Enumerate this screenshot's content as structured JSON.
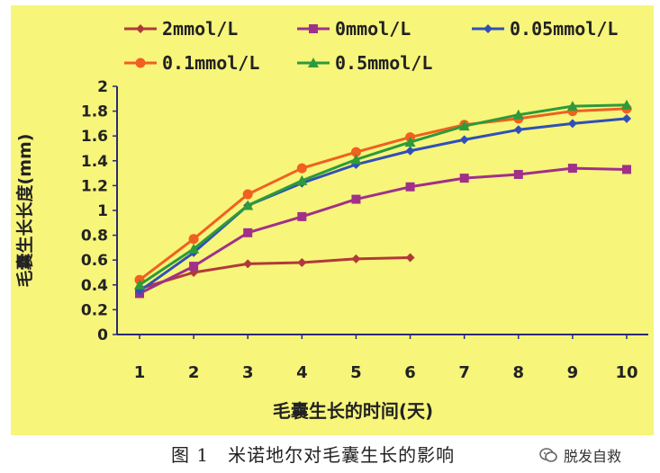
{
  "chart_data": {
    "type": "line",
    "title": "",
    "xlabel": "毛囊生长的时间(天)",
    "ylabel": "毛囊生长长度(mm)",
    "xlim": [
      1,
      10
    ],
    "ylim": [
      0,
      2
    ],
    "x_ticks": [
      "1",
      "2",
      "3",
      "4",
      "5",
      "6",
      "7",
      "8",
      "9",
      "10"
    ],
    "y_ticks": [
      "0",
      "0.2",
      "0.4",
      "0.6",
      "0.8",
      "1",
      "1.2",
      "1.4",
      "1.6",
      "1.8",
      "2"
    ],
    "grid": false,
    "legend_position": "top",
    "series": [
      {
        "name": "2mmol/L",
        "color": "#b03a3a",
        "marker": "diamond",
        "x": [
          1,
          2,
          3,
          4,
          5,
          6
        ],
        "values": [
          0.37,
          0.5,
          0.57,
          0.58,
          0.61,
          0.62
        ]
      },
      {
        "name": "0mmol/L",
        "color": "#a0308a",
        "marker": "square",
        "x": [
          1,
          2,
          3,
          4,
          5,
          6,
          7,
          8,
          9,
          10
        ],
        "values": [
          0.33,
          0.55,
          0.82,
          0.95,
          1.09,
          1.19,
          1.26,
          1.29,
          1.34,
          1.33
        ]
      },
      {
        "name": "0.05mmol/L",
        "color": "#3050b8",
        "marker": "diamond",
        "x": [
          1,
          2,
          3,
          4,
          5,
          6,
          7,
          8,
          9,
          10
        ],
        "values": [
          0.35,
          0.66,
          1.04,
          1.22,
          1.37,
          1.48,
          1.57,
          1.65,
          1.7,
          1.74
        ]
      },
      {
        "name": "0.1mmol/L",
        "color": "#f06020",
        "marker": "circle",
        "x": [
          1,
          2,
          3,
          4,
          5,
          6,
          7,
          8,
          9,
          10
        ],
        "values": [
          0.44,
          0.77,
          1.13,
          1.34,
          1.47,
          1.59,
          1.69,
          1.74,
          1.8,
          1.82
        ]
      },
      {
        "name": "0.5mmol/L",
        "color": "#2e9a3a",
        "marker": "triangle",
        "x": [
          1,
          2,
          3,
          4,
          5,
          6,
          7,
          8,
          9,
          10
        ],
        "values": [
          0.4,
          0.69,
          1.04,
          1.24,
          1.41,
          1.55,
          1.68,
          1.77,
          1.84,
          1.85
        ]
      }
    ]
  },
  "caption": "图 1　米诺地尔对毛囊生长的影响",
  "watermark": "脱发自救",
  "colors": {
    "plot_background": "#f7f57a",
    "axis": "#2a2a7a"
  }
}
